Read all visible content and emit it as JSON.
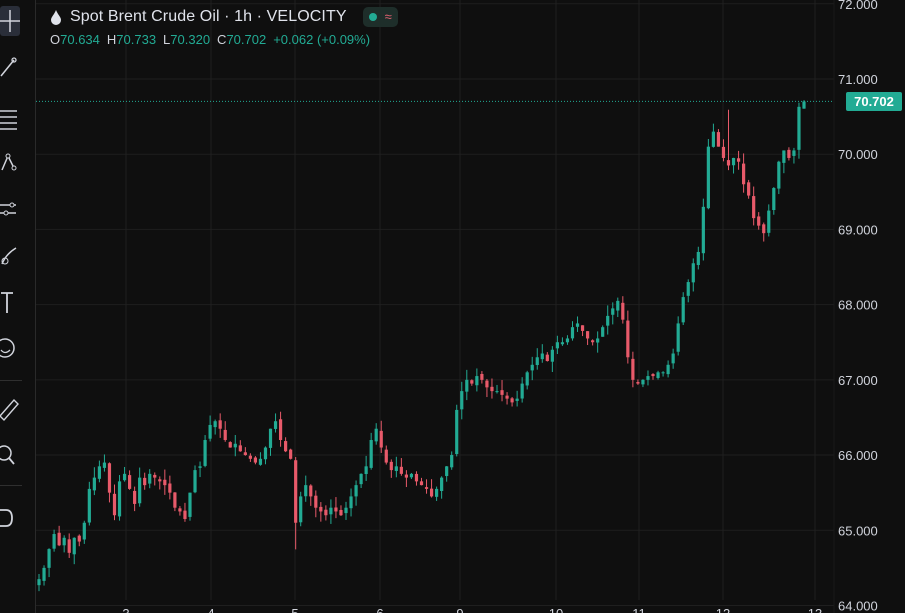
{
  "legend": {
    "title": "Spot Brent Crude Oil · 1h · VELOCITY",
    "open_key": "O",
    "open": "70.634",
    "high_key": "H",
    "high": "70.733",
    "low_key": "L",
    "low": "70.320",
    "close_key": "C",
    "close": "70.702",
    "change": "+0.062 (+0.09%)",
    "status_icon": "market-open-dot",
    "wave_icon": "wave-icon"
  },
  "colors": {
    "up": "#22ab94",
    "down": "#e85a6a",
    "background": "#0f0f0f",
    "grid": "#1f1f1f",
    "axis_text": "#d1d4dc"
  },
  "toolbar": {
    "icons": [
      "crosshair-icon",
      "trend-line-icon",
      "fib-retracement-icon",
      "pattern-icon",
      "prediction-icon",
      "brush-icon",
      "text-icon",
      "emoji-icon",
      "ruler-icon",
      "zoom-icon",
      "magnet-icon"
    ]
  },
  "current_price_label": "70.702",
  "chart_data": {
    "type": "candlestick",
    "title": "Spot Brent Crude Oil · 1h · VELOCITY",
    "ylim": [
      63.9,
      72.05
    ],
    "y_ticks": [
      "64.000",
      "65.000",
      "66.000",
      "67.000",
      "68.000",
      "69.000",
      "70.000",
      "71.000",
      "72.000"
    ],
    "x_ticks": [
      "3",
      "4",
      "5",
      "6",
      "9",
      "10",
      "11",
      "12",
      "13"
    ],
    "x_ticks_visible_partially": true,
    "last_price": 70.702,
    "grid": true,
    "close_path": [
      64.35,
      64.5,
      64.75,
      64.95,
      64.8,
      64.9,
      64.7,
      64.9,
      64.85,
      65.1,
      65.55,
      65.7,
      65.85,
      65.9,
      65.5,
      65.2,
      65.65,
      65.75,
      65.55,
      65.35,
      65.7,
      65.6,
      65.75,
      65.7,
      65.65,
      65.6,
      65.5,
      65.3,
      65.25,
      65.15,
      65.5,
      65.8,
      65.85,
      66.2,
      66.4,
      66.45,
      66.35,
      66.2,
      66.1,
      66.15,
      66.05,
      66.0,
      65.95,
      65.9,
      65.95,
      66.1,
      66.35,
      66.45,
      66.2,
      66.05,
      65.95,
      65.1,
      65.45,
      65.6,
      65.45,
      65.3,
      65.25,
      65.2,
      65.3,
      65.25,
      65.2,
      65.3,
      65.45,
      65.6,
      65.75,
      65.85,
      66.2,
      66.35,
      66.1,
      65.9,
      65.8,
      65.85,
      65.75,
      65.7,
      65.75,
      65.65,
      65.6,
      65.55,
      65.45,
      65.55,
      65.7,
      65.85,
      66.0,
      66.6,
      66.85,
      67.0,
      66.95,
      67.05,
      67.0,
      66.9,
      66.85,
      66.85,
      66.8,
      66.75,
      66.7,
      66.75,
      66.95,
      67.1,
      67.2,
      67.3,
      67.35,
      67.25,
      67.4,
      67.5,
      67.5,
      67.55,
      67.7,
      67.75,
      67.65,
      67.55,
      67.5,
      67.55,
      67.7,
      67.85,
      67.95,
      68.05,
      67.8,
      67.3,
      67.0,
      66.95,
      67.0,
      67.05,
      67.05,
      67.1,
      67.1,
      67.2,
      67.35,
      67.75,
      68.1,
      68.3,
      68.55,
      68.7,
      69.3,
      70.1,
      70.3,
      70.1,
      69.95,
      69.85,
      69.95,
      69.9,
      69.6,
      69.45,
      69.15,
      69.05,
      68.95,
      69.25,
      69.55,
      69.9,
      70.05,
      69.95,
      70.05,
      70.63,
      70.7
    ]
  }
}
